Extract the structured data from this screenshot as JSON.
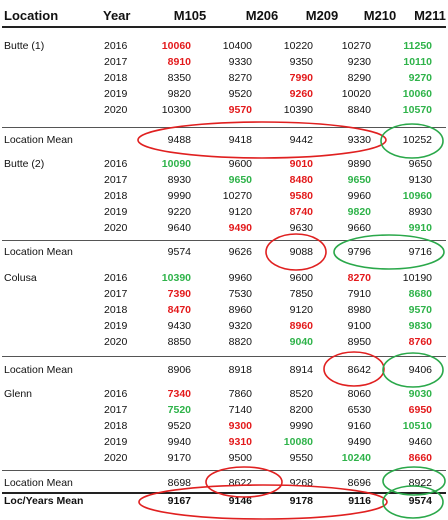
{
  "headers": [
    "Location",
    "Year",
    "M105",
    "M206",
    "M209",
    "M210",
    "M211"
  ],
  "groups": [
    {
      "location": "Butte (1)",
      "rows": [
        {
          "year": "2016",
          "values": [
            "10060",
            "10400",
            "10220",
            "10270",
            "11250"
          ],
          "colors": [
            "red",
            "",
            "",
            "",
            "green"
          ]
        },
        {
          "year": "2017",
          "values": [
            "8910",
            "9330",
            "9350",
            "9230",
            "10110"
          ],
          "colors": [
            "red",
            "",
            "",
            "",
            "green"
          ]
        },
        {
          "year": "2018",
          "values": [
            "8350",
            "8270",
            "7990",
            "8290",
            "9270"
          ],
          "colors": [
            "",
            "",
            "red",
            "",
            "green"
          ]
        },
        {
          "year": "2019",
          "values": [
            "9820",
            "9520",
            "9260",
            "10020",
            "10060"
          ],
          "colors": [
            "",
            "",
            "red",
            "",
            "green"
          ]
        },
        {
          "year": "2020",
          "values": [
            "10300",
            "9570",
            "10390",
            "8840",
            "10570"
          ],
          "colors": [
            "",
            "red",
            "",
            "",
            "green"
          ]
        }
      ],
      "mean_label": "Location Mean",
      "mean": [
        "9488",
        "9418",
        "9442",
        "9330",
        "10252"
      ]
    },
    {
      "location": "Butte (2)",
      "rows": [
        {
          "year": "2016",
          "values": [
            "10090",
            "9600",
            "9010",
            "9890",
            "9650"
          ],
          "colors": [
            "green",
            "",
            "red",
            "",
            ""
          ]
        },
        {
          "year": "2017",
          "values": [
            "8930",
            "9650",
            "8480",
            "9650",
            "9130"
          ],
          "colors": [
            "",
            "green",
            "red",
            "green",
            ""
          ]
        },
        {
          "year": "2018",
          "values": [
            "9990",
            "10270",
            "9580",
            "9960",
            "10960"
          ],
          "colors": [
            "",
            "",
            "red",
            "",
            "green"
          ]
        },
        {
          "year": "2019",
          "values": [
            "9220",
            "9120",
            "8740",
            "9820",
            "8930"
          ],
          "colors": [
            "",
            "",
            "red",
            "green",
            ""
          ]
        },
        {
          "year": "2020",
          "values": [
            "9640",
            "9490",
            "9630",
            "9660",
            "9910"
          ],
          "colors": [
            "",
            "red",
            "",
            "",
            "green"
          ]
        }
      ],
      "mean_label": "Location Mean",
      "mean": [
        "9574",
        "9626",
        "9088",
        "9796",
        "9716"
      ]
    },
    {
      "location": "Colusa",
      "rows": [
        {
          "year": "2016",
          "values": [
            "10390",
            "9960",
            "9600",
            "8270",
            "10190"
          ],
          "colors": [
            "green",
            "",
            "",
            "red",
            ""
          ]
        },
        {
          "year": "2017",
          "values": [
            "7390",
            "7530",
            "7850",
            "7910",
            "8680"
          ],
          "colors": [
            "red",
            "",
            "",
            "",
            "green"
          ]
        },
        {
          "year": "2018",
          "values": [
            "8470",
            "8960",
            "9120",
            "8980",
            "9570"
          ],
          "colors": [
            "red",
            "",
            "",
            "",
            "green"
          ]
        },
        {
          "year": "2019",
          "values": [
            "9430",
            "9320",
            "8960",
            "9100",
            "9830"
          ],
          "colors": [
            "",
            "",
            "red",
            "",
            "green"
          ]
        },
        {
          "year": "2020",
          "values": [
            "8850",
            "8820",
            "9040",
            "8950",
            "8760"
          ],
          "colors": [
            "",
            "",
            "green",
            "",
            "red"
          ]
        }
      ],
      "mean_label": "Location Mean",
      "mean": [
        "8906",
        "8918",
        "8914",
        "8642",
        "9406"
      ]
    },
    {
      "location": "Glenn",
      "rows": [
        {
          "year": "2016",
          "values": [
            "7340",
            "7860",
            "8520",
            "8060",
            "9030"
          ],
          "colors": [
            "red",
            "",
            "",
            "",
            "green"
          ]
        },
        {
          "year": "2017",
          "values": [
            "7520",
            "7140",
            "8200",
            "6530",
            "6950"
          ],
          "colors": [
            "green",
            "",
            "",
            "",
            "red"
          ]
        },
        {
          "year": "2018",
          "values": [
            "9520",
            "9300",
            "9990",
            "9160",
            "10510"
          ],
          "colors": [
            "",
            "red",
            "",
            "",
            "green"
          ]
        },
        {
          "year": "2019",
          "values": [
            "9940",
            "9310",
            "10080",
            "9490",
            "9460"
          ],
          "colors": [
            "",
            "red",
            "green",
            "",
            ""
          ]
        },
        {
          "year": "2020",
          "values": [
            "9170",
            "9500",
            "9550",
            "10240",
            "8660"
          ],
          "colors": [
            "",
            "",
            "",
            "green",
            "red"
          ]
        }
      ],
      "mean_label": "Location Mean",
      "mean": [
        "8698",
        "8622",
        "9268",
        "8696",
        "8922"
      ]
    }
  ],
  "overall": {
    "label": "Loc/Years Mean",
    "values": [
      "9167",
      "9146",
      "9178",
      "9116",
      "9574"
    ]
  },
  "colors": {
    "red": "#e31a1c",
    "green": "#2fb34a",
    "oval_red": "#e02020",
    "oval_green": "#2aa84a"
  }
}
